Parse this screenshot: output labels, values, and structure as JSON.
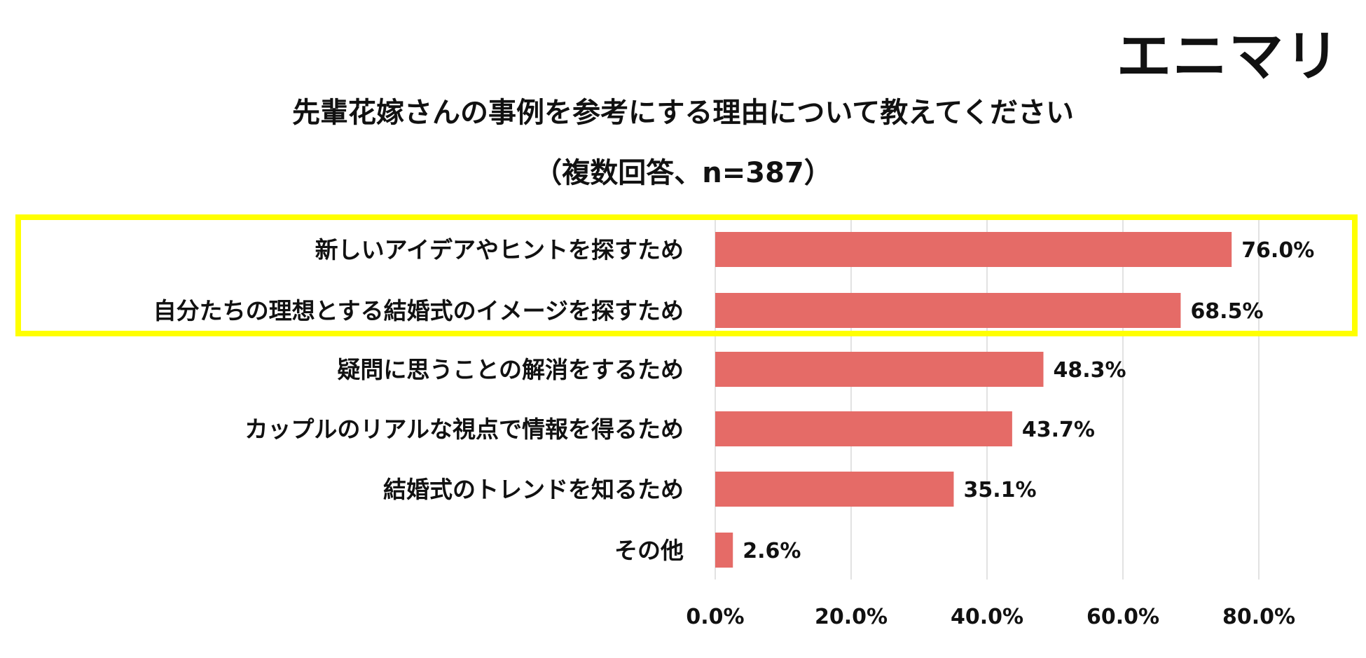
{
  "logo": "エニマリ",
  "chart_data": {
    "type": "bar",
    "orientation": "horizontal",
    "title": "先輩花嫁さんの事例を参考にする理由について教えてください",
    "subtitle": "（複数回答、n=387）",
    "categories": [
      "新しいアイデアやヒントを探すため",
      "自分たちの理想とする結婚式のイメージを探すため",
      "疑問に思うことの解消をするため",
      "カップルのリアルな視点で情報を得るため",
      "結婚式のトレンドを知るため",
      "その他"
    ],
    "values": [
      76.0,
      68.5,
      48.3,
      43.7,
      35.1,
      2.6
    ],
    "value_labels": [
      "76.0%",
      "68.5%",
      "48.3%",
      "43.7%",
      "35.1%",
      "2.6%"
    ],
    "xlim": [
      0,
      80
    ],
    "xticks": [
      0,
      20,
      40,
      60,
      80
    ],
    "xtick_labels": [
      "0.0%",
      "20.0%",
      "40.0%",
      "60.0%",
      "80.0%"
    ],
    "grid": true,
    "highlighted_categories": [
      0,
      1
    ],
    "bar_color": "#e56b67",
    "highlight_color": "#ffff00"
  }
}
